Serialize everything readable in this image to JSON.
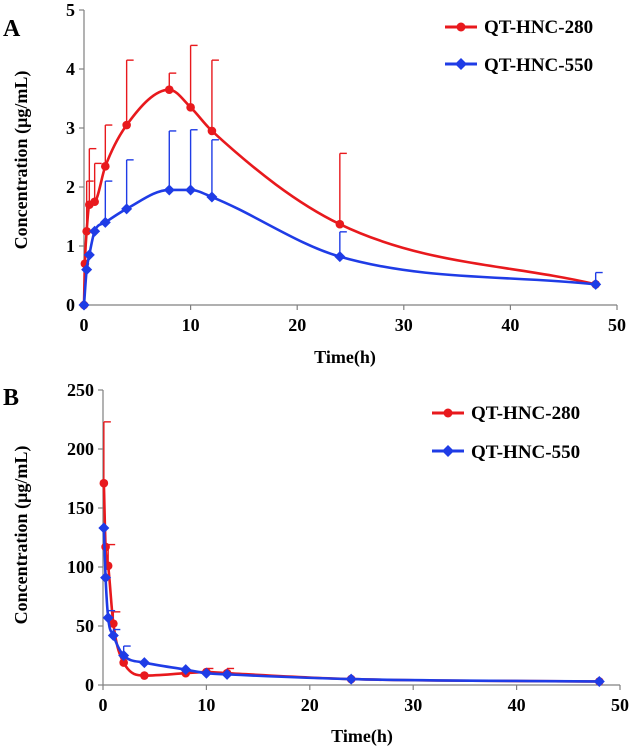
{
  "colors": {
    "series_280": "#e8191d",
    "series_550": "#1f3ce6",
    "axis": "#808080"
  },
  "chart_data": [
    {
      "panel": "A",
      "type": "line",
      "xlabel": "Time(h)",
      "ylabel": "Concentration (µg/mL)",
      "xlim": [
        0,
        50
      ],
      "ylim": [
        0,
        5
      ],
      "xticks": [
        0,
        10,
        20,
        30,
        40,
        50
      ],
      "yticks": [
        0,
        1,
        2,
        3,
        4,
        5
      ],
      "legend_position": "top-right",
      "series": [
        {
          "name": "QT-HNC-280",
          "color": "#e8191d",
          "marker": "circle",
          "x": [
            0,
            0.083,
            0.25,
            0.5,
            1,
            2,
            4,
            8,
            10,
            12,
            24,
            48
          ],
          "y": [
            0,
            0.7,
            1.25,
            1.7,
            1.75,
            2.35,
            3.05,
            3.65,
            3.35,
            2.95,
            1.37,
            0.35
          ],
          "err": [
            0,
            0,
            0.85,
            0.95,
            0.65,
            0.7,
            1.1,
            0.28,
            1.05,
            1.2,
            1.2,
            0
          ]
        },
        {
          "name": "QT-HNC-550",
          "color": "#1f3ce6",
          "marker": "diamond",
          "x": [
            0,
            0.25,
            0.5,
            1,
            2,
            4,
            8,
            10,
            12,
            24,
            48
          ],
          "y": [
            0,
            0.6,
            0.85,
            1.25,
            1.4,
            1.63,
            1.95,
            1.95,
            1.83,
            0.82,
            0.35
          ],
          "err": [
            0,
            0,
            0,
            0,
            0.7,
            0.83,
            1.0,
            1.02,
            0.97,
            0.42,
            0.2
          ]
        }
      ]
    },
    {
      "panel": "B",
      "type": "line",
      "xlabel": "Time(h)",
      "ylabel": "Concentration (µg/mL)",
      "xlim": [
        0,
        50
      ],
      "ylim": [
        0,
        250
      ],
      "xticks": [
        0,
        10,
        20,
        30,
        40,
        50
      ],
      "yticks": [
        0,
        50,
        100,
        150,
        200,
        250
      ],
      "legend_position": "top-right",
      "series": [
        {
          "name": "QT-HNC-280",
          "color": "#e8191d",
          "marker": "circle",
          "x": [
            0.083,
            0.25,
            0.5,
            1,
            2,
            4,
            8,
            10,
            12,
            24,
            48
          ],
          "y": [
            171,
            117,
            101,
            52,
            19,
            8,
            10,
            11,
            10,
            5,
            3
          ],
          "err": [
            52,
            0,
            18,
            10,
            0,
            0,
            0,
            3,
            4,
            0,
            0
          ]
        },
        {
          "name": "QT-HNC-550",
          "color": "#1f3ce6",
          "marker": "diamond",
          "x": [
            0.083,
            0.25,
            0.5,
            1,
            2,
            4,
            8,
            10,
            12,
            24,
            48
          ],
          "y": [
            133,
            91,
            57,
            42,
            25,
            19,
            13,
            10,
            9,
            5,
            3
          ],
          "err": [
            0,
            0,
            6,
            5,
            8,
            0,
            0,
            0,
            0,
            0,
            0
          ]
        }
      ]
    }
  ]
}
